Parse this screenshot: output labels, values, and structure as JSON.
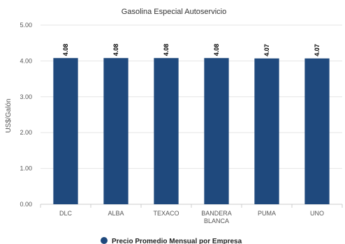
{
  "chart_data": {
    "type": "bar",
    "title": "Gasolina Especial Autoservicio",
    "ylabel": "US$/Galón",
    "xlabel": "",
    "categories": [
      "DLC",
      "ALBA",
      "TEXACO",
      "BANDERA BLANCA",
      "PUMA",
      "UNO"
    ],
    "category_lines": [
      [
        "DLC"
      ],
      [
        "ALBA"
      ],
      [
        "TEXACO"
      ],
      [
        "BANDERA",
        "BLANCA"
      ],
      [
        "PUMA"
      ],
      [
        "UNO"
      ]
    ],
    "series": [
      {
        "name": "Precio Promedio Mensual por Empresa",
        "values": [
          4.08,
          4.08,
          4.08,
          4.08,
          4.07,
          4.07
        ],
        "data_labels": [
          "4.08",
          "4.08",
          "4.08",
          "4.08",
          "4.07",
          "4.07"
        ],
        "color": "#1f497d"
      }
    ],
    "ylim": [
      0,
      5
    ],
    "yticks": [
      0,
      1,
      2,
      3,
      4,
      5
    ],
    "ytick_labels": [
      "0.00",
      "1.00",
      "2.00",
      "3.00",
      "4.00",
      "5.00"
    ],
    "grid": true,
    "legend_position": "bottom-center"
  }
}
